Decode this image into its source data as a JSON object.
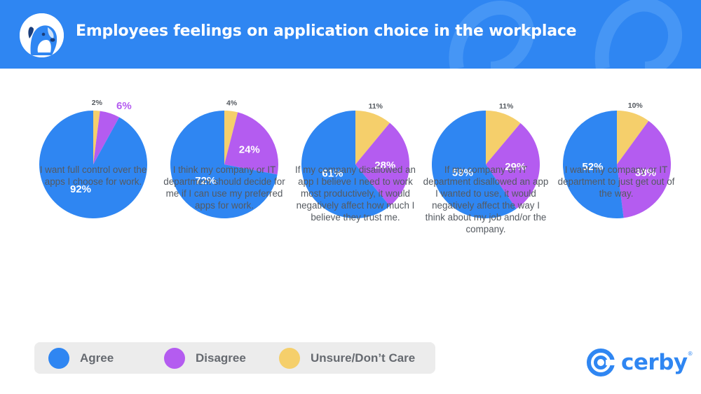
{
  "title": "Employees feelings on application choice in the workplace",
  "colors": {
    "agree": "#2f86f2",
    "disagree": "#b45cf0",
    "unsure": "#f5cf6b",
    "header": "#2f86f2",
    "legend_bg": "#ececec"
  },
  "chart_data": [
    {
      "type": "pie",
      "caption": "I want full control over the apps I choose for work.",
      "slices": [
        {
          "label": "Agree",
          "value": 92,
          "text": "92%"
        },
        {
          "label": "Disagree",
          "value": 6,
          "text": "6%"
        },
        {
          "label": "Unsure/Don't Care",
          "value": 2,
          "text": "2%"
        }
      ]
    },
    {
      "type": "pie",
      "caption": "I think my company or IT department should decide for me if I can use my preferred apps for work.",
      "slices": [
        {
          "label": "Agree",
          "value": 72,
          "text": "72%"
        },
        {
          "label": "Disagree",
          "value": 24,
          "text": "24%"
        },
        {
          "label": "Unsure/Don't Care",
          "value": 4,
          "text": "4%"
        }
      ]
    },
    {
      "type": "pie",
      "caption": "If my company disallowed an app I believe I need to work most productively, it would negatively affect how much I believe they trust me.",
      "slices": [
        {
          "label": "Agree",
          "value": 61,
          "text": "61%"
        },
        {
          "label": "Disagree",
          "value": 28,
          "text": "28%"
        },
        {
          "label": "Unsure/Don't Care",
          "value": 11,
          "text": "11%"
        }
      ]
    },
    {
      "type": "pie",
      "caption": "If my company or IT department disallowed an app I wanted to use, it would negatively affect the way I think about my job and/or the company.",
      "slices": [
        {
          "label": "Agree",
          "value": 59,
          "text": "59%"
        },
        {
          "label": "Disagree",
          "value": 29,
          "text": "29%"
        },
        {
          "label": "Unsure/Don't Care",
          "value": 11,
          "text": "11%"
        }
      ]
    },
    {
      "type": "pie",
      "caption": "I want my company or IT department to just get out of the way.",
      "slices": [
        {
          "label": "Agree",
          "value": 52,
          "text": "52%"
        },
        {
          "label": "Disagree",
          "value": 38,
          "text": "38%"
        },
        {
          "label": "Unsure/Don't Care",
          "value": 10,
          "text": "10%"
        }
      ]
    }
  ],
  "legend": [
    {
      "label": "Agree",
      "color": "#2f86f2"
    },
    {
      "label": "Disagree",
      "color": "#b45cf0"
    },
    {
      "label": "Unsure/Don’t Care",
      "color": "#f5cf6b"
    }
  ],
  "brand": {
    "name": "cerby",
    "reg": "®"
  }
}
